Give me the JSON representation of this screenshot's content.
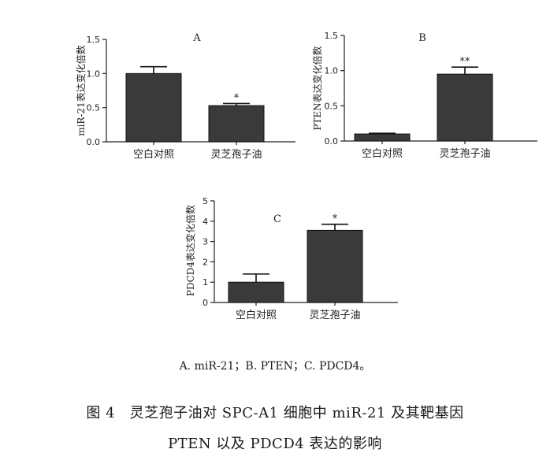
{
  "chart_data": [
    {
      "type": "bar",
      "panel_letter": "A",
      "ylabel": "miR-21表达变化倍数",
      "categories": [
        "空白对照",
        "灵芝孢子油"
      ],
      "values": [
        1.0,
        0.53
      ],
      "errors": [
        0.1,
        0.03
      ],
      "annotations": [
        "",
        "*"
      ],
      "ylim": [
        0,
        1.5
      ],
      "yticks": [
        "0.0",
        "0.5",
        "1.0",
        "1.5"
      ]
    },
    {
      "type": "bar",
      "panel_letter": "B",
      "ylabel": "PTEN表达变化倍数",
      "categories": [
        "空白对照",
        "灵芝孢子油"
      ],
      "values": [
        0.1,
        0.95
      ],
      "errors": [
        0.01,
        0.1
      ],
      "annotations": [
        "",
        "**"
      ],
      "ylim": [
        0,
        1.5
      ],
      "yticks": [
        "0.0",
        "0.5",
        "1.0",
        "1.5"
      ]
    },
    {
      "type": "bar",
      "panel_letter": "C",
      "ylabel": "PDCD4表达变化倍数",
      "categories": [
        "空白对照",
        "灵芝孢子油"
      ],
      "values": [
        1.0,
        3.55
      ],
      "errors": [
        0.4,
        0.3
      ],
      "annotations": [
        "",
        "*"
      ],
      "ylim": [
        0,
        5
      ],
      "yticks": [
        "0",
        "1",
        "2",
        "3",
        "4",
        "5"
      ]
    }
  ],
  "legend_text": "A. miR-21；B. PTEN；C. PDCD4。",
  "caption": {
    "line1": "图 4　灵芝孢子油对 SPC-A1 细胞中 miR-21 及其靶基因",
    "line2": "PTEN 以及 PDCD4 表达的影响"
  }
}
